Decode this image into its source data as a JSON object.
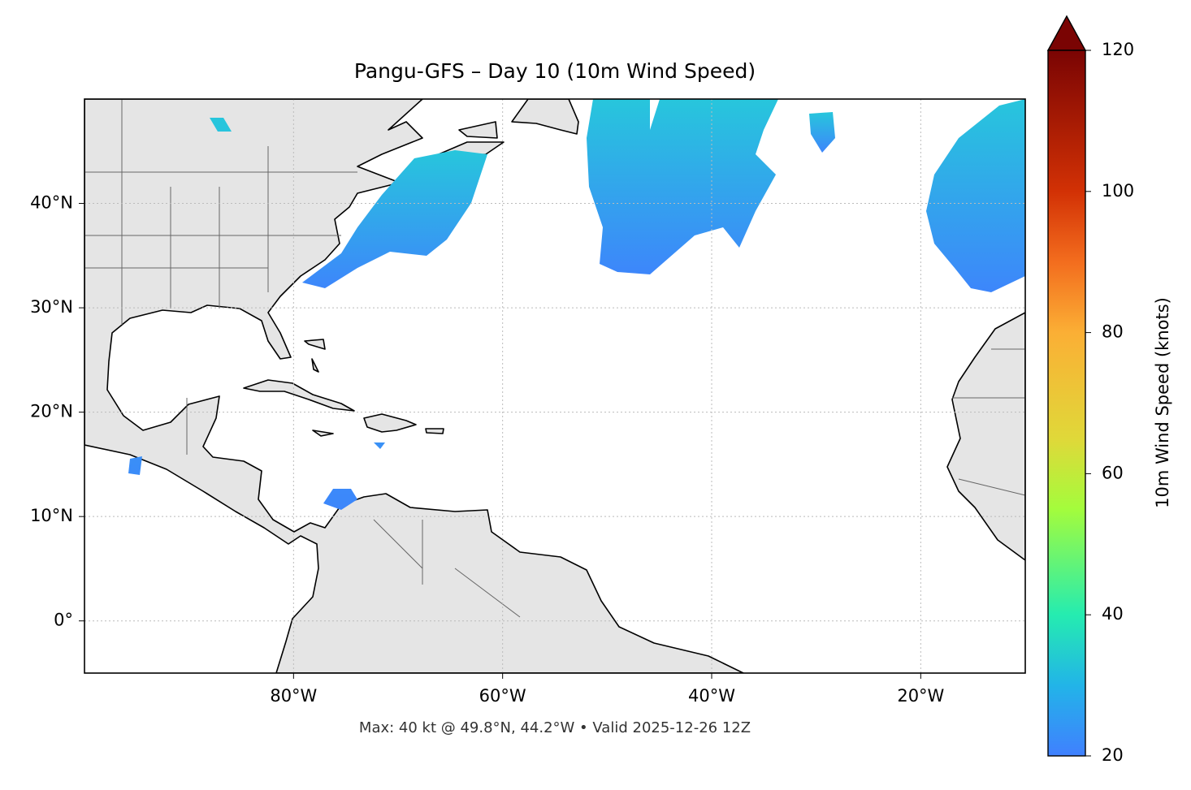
{
  "chart_data": {
    "type": "map",
    "title": "Pangu-GFS – Day 10 (10m Wind Speed)",
    "subtitle": "Max: 40 kt @ 49.8°N, 44.2°W • Valid 2025-12-26 12Z",
    "xlim": [
      -100,
      -10
    ],
    "ylim": [
      -5,
      50
    ],
    "xticks": [
      {
        "value": -80,
        "label": "80°W"
      },
      {
        "value": -60,
        "label": "60°W"
      },
      {
        "value": -40,
        "label": "40°W"
      },
      {
        "value": -20,
        "label": "20°W"
      }
    ],
    "yticks": [
      {
        "value": 0,
        "label": "0°"
      },
      {
        "value": 10,
        "label": "10°N"
      },
      {
        "value": 20,
        "label": "20°N"
      },
      {
        "value": 30,
        "label": "30°N"
      },
      {
        "value": 40,
        "label": "40°N"
      }
    ],
    "grid": true,
    "colorbar": {
      "label": "10m Wind Speed (knots)",
      "clim": [
        20,
        120
      ],
      "ticks": [
        20,
        40,
        60,
        80,
        100,
        120
      ]
    }
  }
}
